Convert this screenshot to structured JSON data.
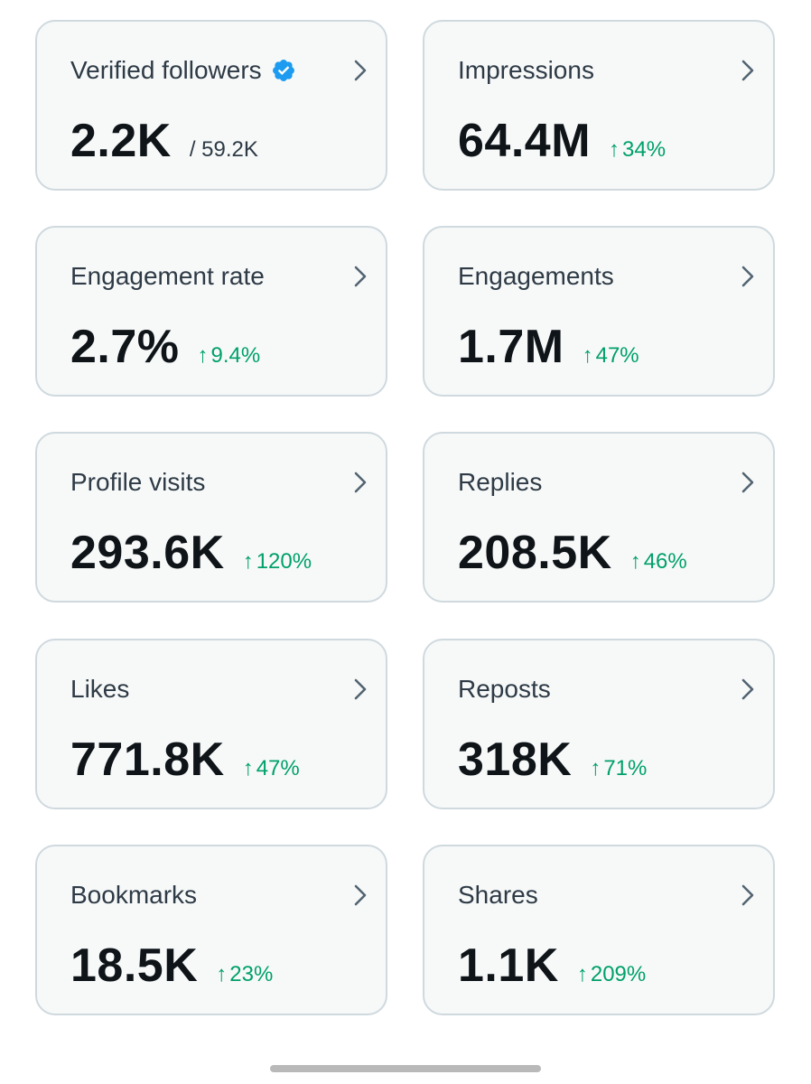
{
  "cards": [
    {
      "id": "verified-followers",
      "title": "Verified followers",
      "value": "2.2K",
      "total": "/ 59.2K",
      "verified": true
    },
    {
      "id": "impressions",
      "title": "Impressions",
      "value": "64.4M",
      "arrow": "↑",
      "change": "34%"
    },
    {
      "id": "engagement-rate",
      "title": "Engagement rate",
      "value": "2.7%",
      "arrow": "↑",
      "change": "9.4%"
    },
    {
      "id": "engagements",
      "title": "Engagements",
      "value": "1.7M",
      "arrow": "↑",
      "change": "47%"
    },
    {
      "id": "profile-visits",
      "title": "Profile visits",
      "value": "293.6K",
      "arrow": "↑",
      "change": "120%"
    },
    {
      "id": "replies",
      "title": "Replies",
      "value": "208.5K",
      "arrow": "↑",
      "change": "46%"
    },
    {
      "id": "likes",
      "title": "Likes",
      "value": "771.8K",
      "arrow": "↑",
      "change": "47%"
    },
    {
      "id": "reposts",
      "title": "Reposts",
      "value": "318K",
      "arrow": "↑",
      "change": "71%"
    },
    {
      "id": "bookmarks",
      "title": "Bookmarks",
      "value": "18.5K",
      "arrow": "↑",
      "change": "23%"
    },
    {
      "id": "shares",
      "title": "Shares",
      "value": "1.1K",
      "arrow": "↑",
      "change": "209%"
    }
  ],
  "icons": {
    "chevron": "chevron-right-icon",
    "verified": "verified-badge-icon"
  },
  "colors": {
    "card_background": "#f7f9f9",
    "card_border": "#cfd9de",
    "title": "#2e3a45",
    "value": "#0f1419",
    "positive_change": "#00a06a",
    "verified_blue": "#1d9bf0",
    "chevron": "#536471",
    "home_indicator": "#b9b9b9"
  }
}
